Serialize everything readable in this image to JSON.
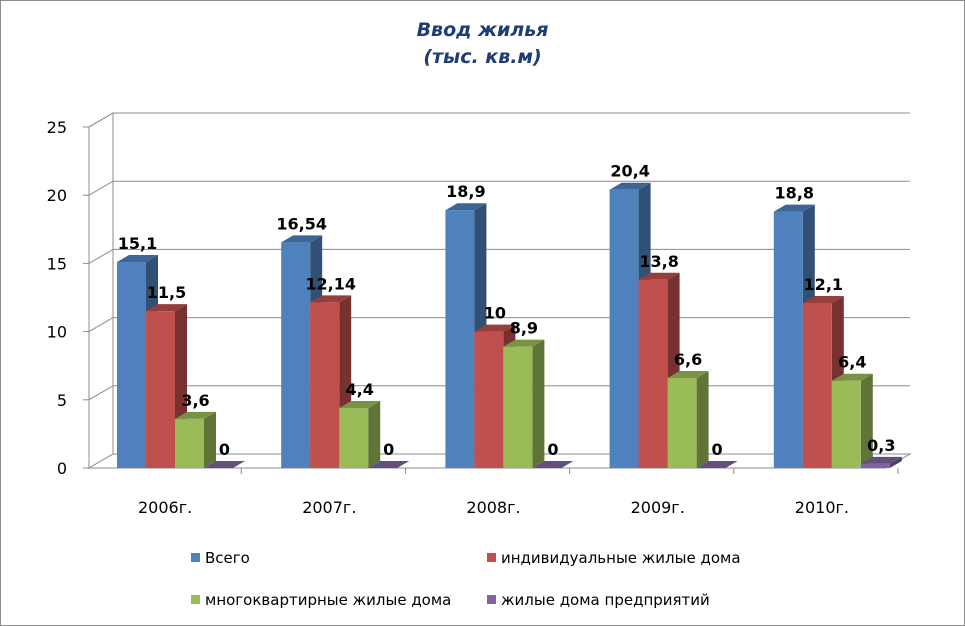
{
  "chart_data": {
    "type": "bar",
    "title_line1": "Ввод жилья",
    "title_line2": "(тыс. кв.м)",
    "categories": [
      "2006г.",
      "2007г.",
      "2008г.",
      "2009г.",
      "2010г."
    ],
    "series": [
      {
        "name": "Всего",
        "values": [
          15.1,
          16.54,
          18.9,
          20.4,
          18.8
        ],
        "labels": [
          "15,1",
          "16,54",
          "18,9",
          "20,4",
          "18,8"
        ],
        "color": "#4f81bd"
      },
      {
        "name": "индивидуальные жилые дома",
        "values": [
          11.5,
          12.14,
          10,
          13.8,
          12.1
        ],
        "labels": [
          "11,5",
          "12,14",
          "10",
          "13,8",
          "12,1"
        ],
        "color": "#c0504d"
      },
      {
        "name": "многоквартирные жилые дома",
        "values": [
          3.6,
          4.4,
          8.9,
          6.6,
          6.4
        ],
        "labels": [
          "3,6",
          "4,4",
          "8,9",
          "6,6",
          "6,4"
        ],
        "color": "#9bbb59"
      },
      {
        "name": "жилые дома предприятий",
        "values": [
          0,
          0,
          0,
          0,
          0.3
        ],
        "labels": [
          "0",
          "0",
          "0",
          "0",
          "0,3"
        ],
        "color": "#8064a2"
      }
    ],
    "yticks": [
      "0",
      "5",
      "10",
      "15",
      "20",
      "25"
    ],
    "ylim": [
      0,
      25
    ],
    "grid": true,
    "legend_position": "bottom"
  }
}
